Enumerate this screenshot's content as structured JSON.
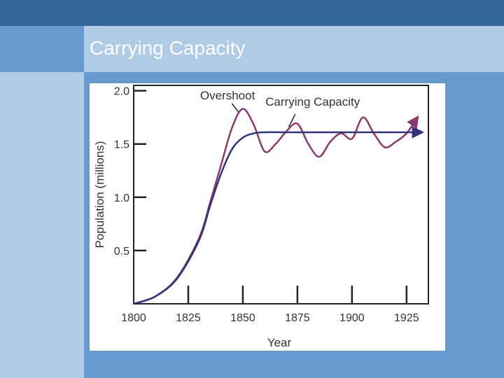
{
  "slide": {
    "title": "Carrying Capacity"
  },
  "chart_data": {
    "type": "line",
    "title": "",
    "xlabel": "Year",
    "ylabel": "Population (millions)",
    "xlim": [
      1800,
      1935
    ],
    "ylim": [
      0,
      2.05
    ],
    "x_ticks": [
      "1800",
      "1825",
      "1850",
      "1875",
      "1900",
      "1925"
    ],
    "y_ticks": [
      "2.0",
      "1.5",
      "1.0",
      "0.5"
    ],
    "series": [
      {
        "name": "Overshoot",
        "color": "#8b3a6b",
        "x": [
          1800,
          1810,
          1820,
          1830,
          1835,
          1840,
          1845,
          1850,
          1855,
          1860,
          1865,
          1870,
          1875,
          1880,
          1885,
          1890,
          1895,
          1900,
          1905,
          1910,
          1915,
          1920,
          1925,
          1930
        ],
        "y": [
          0.0,
          0.07,
          0.25,
          0.62,
          0.95,
          1.3,
          1.65,
          1.83,
          1.68,
          1.43,
          1.5,
          1.62,
          1.69,
          1.5,
          1.38,
          1.52,
          1.6,
          1.55,
          1.75,
          1.6,
          1.47,
          1.52,
          1.6,
          1.75
        ]
      },
      {
        "name": "Carrying Capacity",
        "color": "#33337a",
        "x": [
          1800,
          1810,
          1820,
          1830,
          1835,
          1840,
          1845,
          1850,
          1855,
          1860,
          1870,
          1880,
          1900,
          1920,
          1932
        ],
        "y": [
          0.0,
          0.07,
          0.24,
          0.6,
          0.92,
          1.22,
          1.45,
          1.56,
          1.6,
          1.61,
          1.61,
          1.61,
          1.61,
          1.61,
          1.61
        ]
      }
    ],
    "annotations": [
      {
        "text": "Overshoot",
        "x": 1843,
        "y": 1.92
      },
      {
        "text": "Carrying Capacity",
        "x": 1882,
        "y": 1.86
      }
    ]
  }
}
